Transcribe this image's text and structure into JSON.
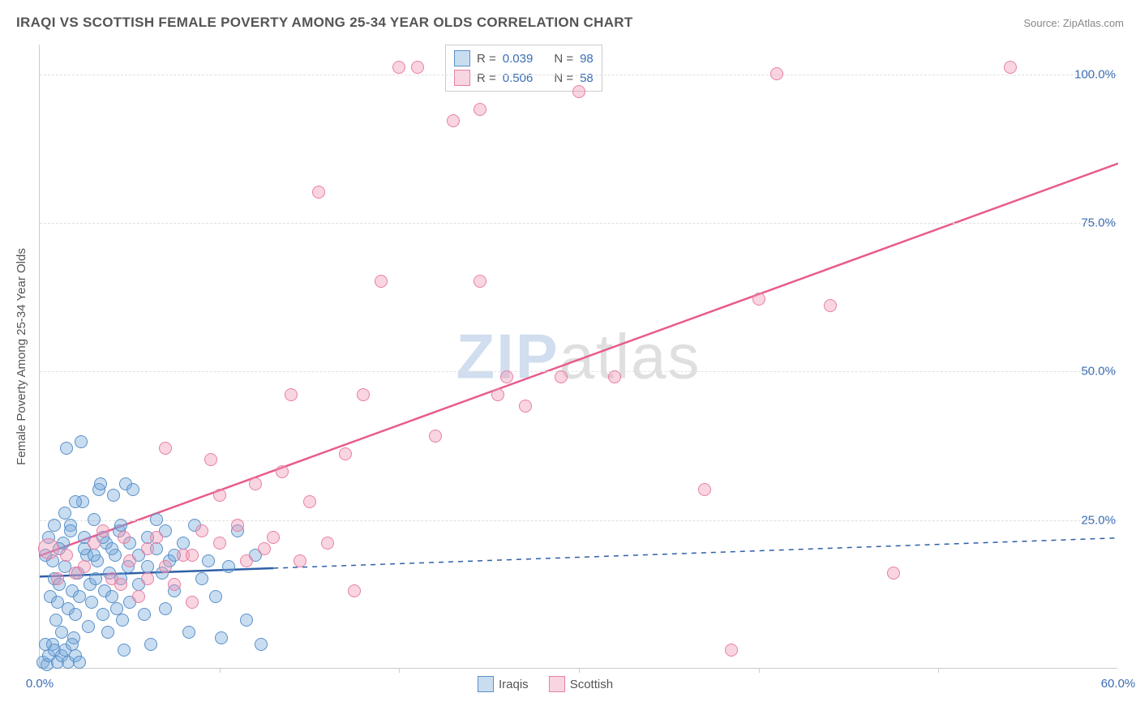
{
  "title": "IRAQI VS SCOTTISH FEMALE POVERTY AMONG 25-34 YEAR OLDS CORRELATION CHART",
  "source_label": "Source: ZipAtlas.com",
  "ylabel": "Female Poverty Among 25-34 Year Olds",
  "watermark_zip": "ZIP",
  "watermark_atlas": "atlas",
  "chart": {
    "type": "scatter",
    "xlim": [
      0,
      60
    ],
    "ylim": [
      0,
      105
    ],
    "y_ticks": [
      25,
      50,
      75,
      100
    ],
    "y_tick_labels": [
      "25.0%",
      "50.0%",
      "75.0%",
      "100.0%"
    ],
    "x_ticks": [
      0,
      60
    ],
    "x_tick_labels": [
      "0.0%",
      "60.0%"
    ],
    "x_minor_ticks": [
      10,
      20,
      30,
      40,
      50
    ],
    "axis_color": "#cccccc",
    "grid_color": "#e0e0e0",
    "background_color": "#ffffff",
    "tick_label_color": "#3a6db5",
    "axis_label_color": "#555555",
    "marker_radius": 8,
    "series": [
      {
        "name": "Iraqis",
        "fill": "rgba(120,170,220,0.40)",
        "stroke": "#5a90c8",
        "trend": {
          "color": "#2f5fa8",
          "width": 2.5,
          "x_solid_end": 13,
          "y_start": 15.5,
          "y_end": 22.0,
          "dash": "6,6"
        },
        "stats": {
          "R": "0.039",
          "N": "98"
        },
        "points": [
          [
            0.2,
            1
          ],
          [
            0.3,
            4
          ],
          [
            0.4,
            0.5
          ],
          [
            0.6,
            12
          ],
          [
            0.7,
            18
          ],
          [
            0.8,
            15
          ],
          [
            0.9,
            8
          ],
          [
            1.0,
            11
          ],
          [
            1.1,
            14
          ],
          [
            1.2,
            6
          ],
          [
            1.3,
            21
          ],
          [
            1.4,
            17
          ],
          [
            1.5,
            37
          ],
          [
            1.6,
            10
          ],
          [
            1.7,
            24
          ],
          [
            1.8,
            13
          ],
          [
            1.9,
            5
          ],
          [
            2.0,
            9
          ],
          [
            2.1,
            16
          ],
          [
            2.2,
            12
          ],
          [
            2.3,
            38
          ],
          [
            2.4,
            28
          ],
          [
            2.5,
            22
          ],
          [
            2.6,
            19
          ],
          [
            2.7,
            7
          ],
          [
            2.8,
            14
          ],
          [
            2.9,
            11
          ],
          [
            3.0,
            25
          ],
          [
            3.1,
            15
          ],
          [
            3.2,
            18
          ],
          [
            3.3,
            30
          ],
          [
            3.4,
            31
          ],
          [
            3.5,
            9
          ],
          [
            3.6,
            13
          ],
          [
            3.7,
            21
          ],
          [
            3.8,
            6
          ],
          [
            3.9,
            16
          ],
          [
            4.0,
            12
          ],
          [
            4.1,
            29
          ],
          [
            4.2,
            19
          ],
          [
            4.3,
            10
          ],
          [
            4.4,
            23
          ],
          [
            4.5,
            15
          ],
          [
            4.6,
            8
          ],
          [
            4.7,
            3
          ],
          [
            4.8,
            31
          ],
          [
            4.9,
            17
          ],
          [
            5.0,
            11
          ],
          [
            5.2,
            30
          ],
          [
            5.5,
            14
          ],
          [
            5.8,
            9
          ],
          [
            6.0,
            22
          ],
          [
            6.2,
            4
          ],
          [
            6.5,
            25
          ],
          [
            6.8,
            16
          ],
          [
            7.0,
            10
          ],
          [
            7.2,
            18
          ],
          [
            7.5,
            13
          ],
          [
            8.0,
            21
          ],
          [
            8.3,
            6
          ],
          [
            8.6,
            24
          ],
          [
            9.0,
            15
          ],
          [
            9.4,
            18
          ],
          [
            9.8,
            12
          ],
          [
            10.1,
            5
          ],
          [
            10.5,
            17
          ],
          [
            11.0,
            23
          ],
          [
            11.5,
            8
          ],
          [
            12.0,
            19
          ],
          [
            12.3,
            4
          ],
          [
            0.5,
            2
          ],
          [
            0.7,
            4
          ],
          [
            0.8,
            3
          ],
          [
            1.0,
            1
          ],
          [
            1.2,
            2
          ],
          [
            1.4,
            3
          ],
          [
            1.6,
            1
          ],
          [
            1.8,
            4
          ],
          [
            2.0,
            2
          ],
          [
            2.2,
            1
          ],
          [
            0.3,
            19
          ],
          [
            0.5,
            22
          ],
          [
            0.8,
            24
          ],
          [
            1.1,
            20
          ],
          [
            1.4,
            26
          ],
          [
            1.7,
            23
          ],
          [
            2.0,
            28
          ],
          [
            2.5,
            20
          ],
          [
            3.0,
            19
          ],
          [
            3.5,
            22
          ],
          [
            4.0,
            20
          ],
          [
            4.5,
            24
          ],
          [
            5.0,
            21
          ],
          [
            5.5,
            19
          ],
          [
            6.0,
            17
          ],
          [
            6.5,
            20
          ],
          [
            7.0,
            23
          ],
          [
            7.5,
            19
          ]
        ]
      },
      {
        "name": "Scottish",
        "fill": "rgba(240,150,180,0.40)",
        "stroke": "#e77fa5",
        "trend": {
          "color": "#e85b8e",
          "width": 2.5,
          "x_solid_end": 60,
          "y_start": 19.0,
          "y_end": 85.0,
          "dash": ""
        },
        "stats": {
          "R": "0.506",
          "N": "58"
        },
        "big_point": [
          0.5,
          20
        ],
        "points": [
          [
            1.0,
            15
          ],
          [
            1.5,
            19
          ],
          [
            2.0,
            16
          ],
          [
            2.5,
            17
          ],
          [
            3.0,
            21
          ],
          [
            3.5,
            23
          ],
          [
            4.0,
            15
          ],
          [
            4.5,
            14
          ],
          [
            5.0,
            18
          ],
          [
            5.5,
            12
          ],
          [
            6.0,
            20
          ],
          [
            6.5,
            22
          ],
          [
            7.0,
            37
          ],
          [
            7.5,
            14
          ],
          [
            8.0,
            19
          ],
          [
            8.5,
            11
          ],
          [
            9.0,
            23
          ],
          [
            9.5,
            35
          ],
          [
            10.0,
            29
          ],
          [
            11.0,
            24
          ],
          [
            12.0,
            31
          ],
          [
            12.5,
            20
          ],
          [
            13.0,
            22
          ],
          [
            13.5,
            33
          ],
          [
            14.0,
            46
          ],
          [
            14.5,
            18
          ],
          [
            15.0,
            28
          ],
          [
            15.5,
            80
          ],
          [
            16.0,
            21
          ],
          [
            17.0,
            36
          ],
          [
            17.5,
            13
          ],
          [
            18.0,
            46
          ],
          [
            19.0,
            65
          ],
          [
            20.0,
            101
          ],
          [
            21.0,
            101
          ],
          [
            22.0,
            39
          ],
          [
            23.0,
            92
          ],
          [
            24.5,
            65
          ],
          [
            24.5,
            94
          ],
          [
            25.5,
            46
          ],
          [
            26.0,
            49
          ],
          [
            27.0,
            44
          ],
          [
            29.0,
            49
          ],
          [
            30.0,
            97
          ],
          [
            32.0,
            49
          ],
          [
            37.0,
            30
          ],
          [
            38.5,
            3
          ],
          [
            40.0,
            62
          ],
          [
            41.0,
            100
          ],
          [
            44.0,
            61
          ],
          [
            47.5,
            16
          ],
          [
            54.0,
            101
          ],
          [
            6.0,
            15
          ],
          [
            7.0,
            17
          ],
          [
            8.5,
            19
          ],
          [
            10.0,
            21
          ],
          [
            11.5,
            18
          ],
          [
            4.7,
            22
          ]
        ]
      }
    ]
  },
  "legend": {
    "top": {
      "swatch_fill_1": "rgba(120,170,220,0.40)",
      "swatch_stroke_1": "#5a90c8",
      "swatch_fill_2": "rgba(240,150,180,0.40)",
      "swatch_stroke_2": "#e77fa5",
      "R_label": "R =",
      "N_label": "N ="
    },
    "bottom": {
      "label_1": "Iraqis",
      "label_2": "Scottish"
    }
  }
}
